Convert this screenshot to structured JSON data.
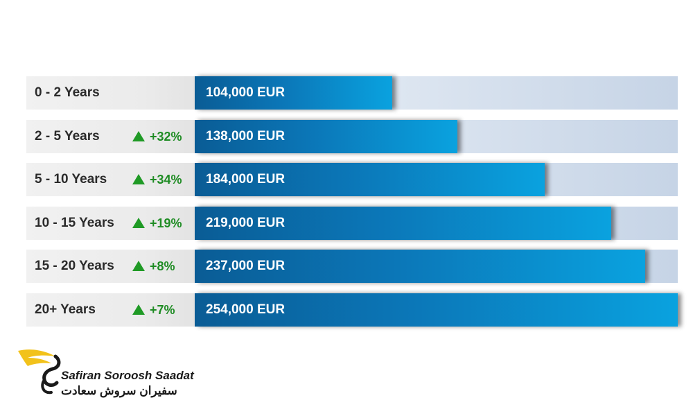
{
  "chart_data": {
    "type": "bar",
    "orientation": "horizontal",
    "categories": [
      "0 - 2 Years",
      "2 - 5 Years",
      "5 - 10 Years",
      "10 - 15 Years",
      "15 - 20 Years",
      "20+ Years"
    ],
    "values": [
      104000,
      138000,
      184000,
      219000,
      237000,
      254000
    ],
    "value_labels": [
      "104,000 EUR",
      "138,000 EUR",
      "184,000 EUR",
      "219,000 EUR",
      "237,000 EUR",
      "254,000 EUR"
    ],
    "changes": [
      "",
      "+32%",
      "+34%",
      "+19%",
      "+8%",
      "+7%"
    ],
    "unit": "EUR",
    "xlim": [
      0,
      254000
    ],
    "bar_color": "#0b77b8",
    "change_color": "#1f8c24"
  },
  "logo": {
    "name_latin": "Safiran Soroosh Saadat",
    "name_farsi": "سفیران سروش سعادت",
    "wing_color": "#f2c21b"
  }
}
